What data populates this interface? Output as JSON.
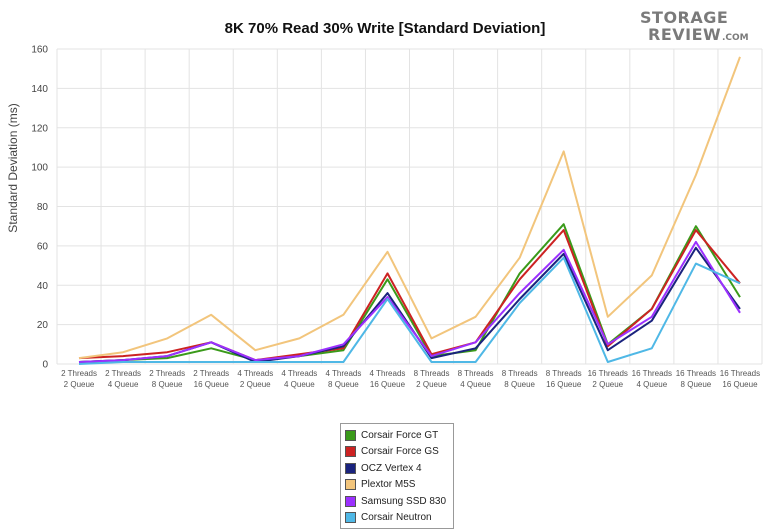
{
  "logo": {
    "top": "STORAGE",
    "bottom": "REVIEW",
    "suffix": ".COM"
  },
  "chart_data": {
    "type": "line",
    "title": "8K 70% Read 30% Write [Standard Deviation]",
    "xlabel": "",
    "ylabel": "Standard Deviation (ms)",
    "ylim": [
      0,
      160
    ],
    "yticks": [
      0,
      20,
      40,
      60,
      80,
      100,
      120,
      140,
      160
    ],
    "grid": true,
    "legend_position": "bottom-center",
    "categories": [
      [
        "2 Threads",
        "2 Queue"
      ],
      [
        "2 Threads",
        "4 Queue"
      ],
      [
        "2 Threads",
        "8 Queue"
      ],
      [
        "2 Threads",
        "16 Queue"
      ],
      [
        "4 Threads",
        "2 Queue"
      ],
      [
        "4 Threads",
        "4 Queue"
      ],
      [
        "4 Threads",
        "8 Queue"
      ],
      [
        "4 Threads",
        "16 Queue"
      ],
      [
        "8 Threads",
        "2 Queue"
      ],
      [
        "8 Threads",
        "4 Queue"
      ],
      [
        "8 Threads",
        "8 Queue"
      ],
      [
        "8 Threads",
        "16 Queue"
      ],
      [
        "16 Threads",
        "2 Queue"
      ],
      [
        "16 Threads",
        "4 Queue"
      ],
      [
        "16 Threads",
        "8 Queue"
      ],
      [
        "16 Threads",
        "16 Queue"
      ]
    ],
    "series": [
      {
        "name": "Corsair Force GT",
        "color": "#3a9a1a",
        "values": [
          1,
          2,
          3,
          8,
          2,
          4,
          7,
          43,
          4,
          7,
          46,
          71,
          10,
          28,
          70,
          34
        ]
      },
      {
        "name": "Corsair Force GS",
        "color": "#cc2222",
        "values": [
          3,
          4,
          6,
          11,
          2,
          5,
          8,
          46,
          5,
          11,
          43,
          68,
          9,
          28,
          68,
          41
        ]
      },
      {
        "name": "OCZ Vertex 4",
        "color": "#1a237e",
        "values": [
          1,
          2,
          4,
          11,
          1,
          4,
          9,
          36,
          3,
          8,
          33,
          56,
          7,
          22,
          59,
          28
        ]
      },
      {
        "name": "Plextor M5S",
        "color": "#f2c57c",
        "values": [
          3,
          6,
          13,
          25,
          7,
          13,
          25,
          57,
          13,
          24,
          54,
          108,
          24,
          45,
          96,
          156
        ]
      },
      {
        "name": "Samsung SSD 830",
        "color": "#9b30ff",
        "values": [
          1,
          2,
          4,
          11,
          2,
          4,
          10,
          34,
          4,
          11,
          36,
          58,
          10,
          24,
          62,
          26
        ]
      },
      {
        "name": "Corsair Neutron",
        "color": "#4fb8e6",
        "values": [
          0,
          1,
          1,
          1,
          1,
          1,
          1,
          33,
          1,
          1,
          31,
          54,
          1,
          8,
          51,
          41
        ]
      }
    ]
  }
}
